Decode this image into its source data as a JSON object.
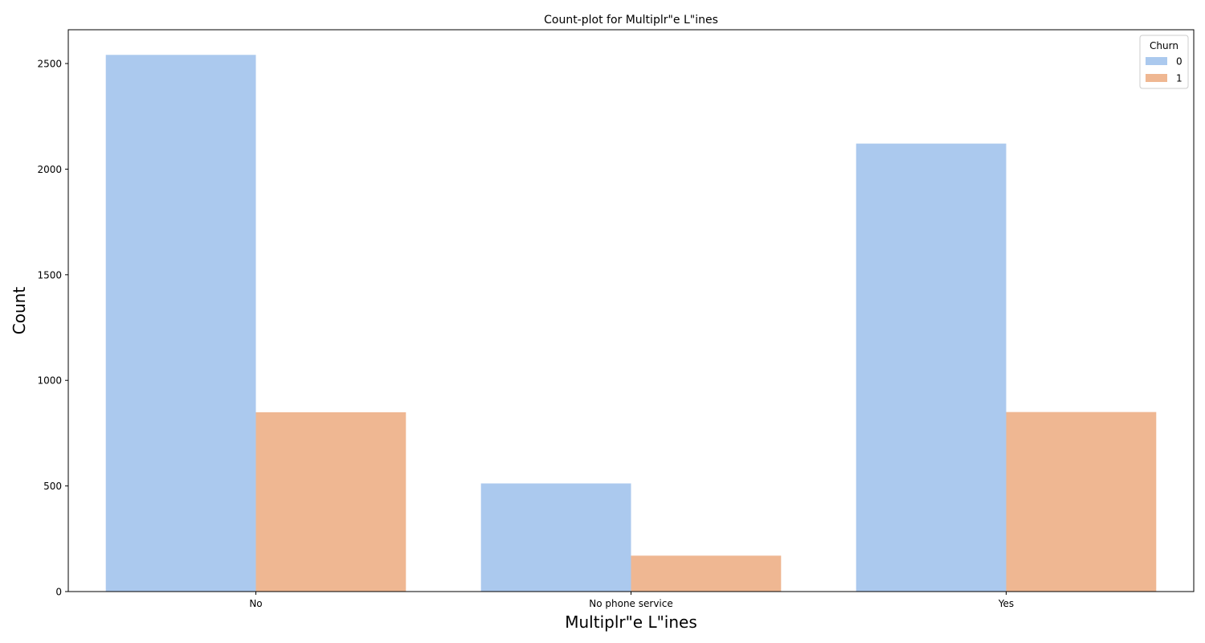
{
  "chart_data": {
    "type": "bar",
    "title": "Count-plot for Multiplr\"e L\"ines",
    "xlabel": "Multiplr\"e L\"ines",
    "ylabel": "Count",
    "categories": [
      "No",
      "No phone service",
      "Yes"
    ],
    "series": [
      {
        "name": "0",
        "values": [
          2541,
          512,
          2121
        ],
        "color": "#abc9ee"
      },
      {
        "name": "1",
        "values": [
          849,
          170,
          850
        ],
        "color": "#efb792"
      }
    ],
    "ylim": [
      0,
      2660
    ],
    "yticks": [
      0,
      500,
      1000,
      1500,
      2000,
      2500
    ],
    "grid": false,
    "legend": {
      "title": "Churn",
      "placement": "top-right"
    }
  }
}
